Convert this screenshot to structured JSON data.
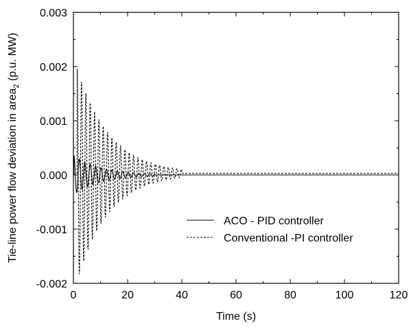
{
  "chart_data": {
    "type": "line",
    "title": "",
    "xlabel": "Time (s)",
    "ylabel": {
      "prefix": "Tie-line power flow deviation in area",
      "subscript": "2",
      "suffix": " (p.u. MW)"
    },
    "xlim": [
      0,
      120
    ],
    "ylim": [
      -0.002,
      0.003
    ],
    "x_ticks": [
      0,
      20,
      40,
      60,
      80,
      100,
      120
    ],
    "x_tick_labels": [
      "0",
      "20",
      "40",
      "60",
      "80",
      "100",
      "120"
    ],
    "y_ticks": [
      -0.002,
      -0.001,
      0.0,
      0.001,
      0.002,
      0.003
    ],
    "y_tick_labels": [
      "-0.002",
      "-0.001",
      "0.000",
      "0.001",
      "0.002",
      "0.003"
    ],
    "grid": false,
    "legend_position": "center-right",
    "series": [
      {
        "name": "ACO - PID controller",
        "style": "solid",
        "color": "#000000",
        "model": {
          "type": "damped_oscillation",
          "t0": 0.2,
          "peak": 0.00036,
          "period": 2.0,
          "decay": 0.1,
          "offset": 0.0,
          "end": 30
        }
      },
      {
        "name": "Conventional -PI controller",
        "style": "dashed",
        "color": "#000000",
        "model": {
          "type": "damped_oscillation",
          "t0": 1.4,
          "peak": 0.00196,
          "period": 1.6,
          "decay": 0.085,
          "floor_amp": 0.0005,
          "floor_decay": 0.08,
          "offset": 3e-05,
          "end": 40
        }
      }
    ]
  }
}
